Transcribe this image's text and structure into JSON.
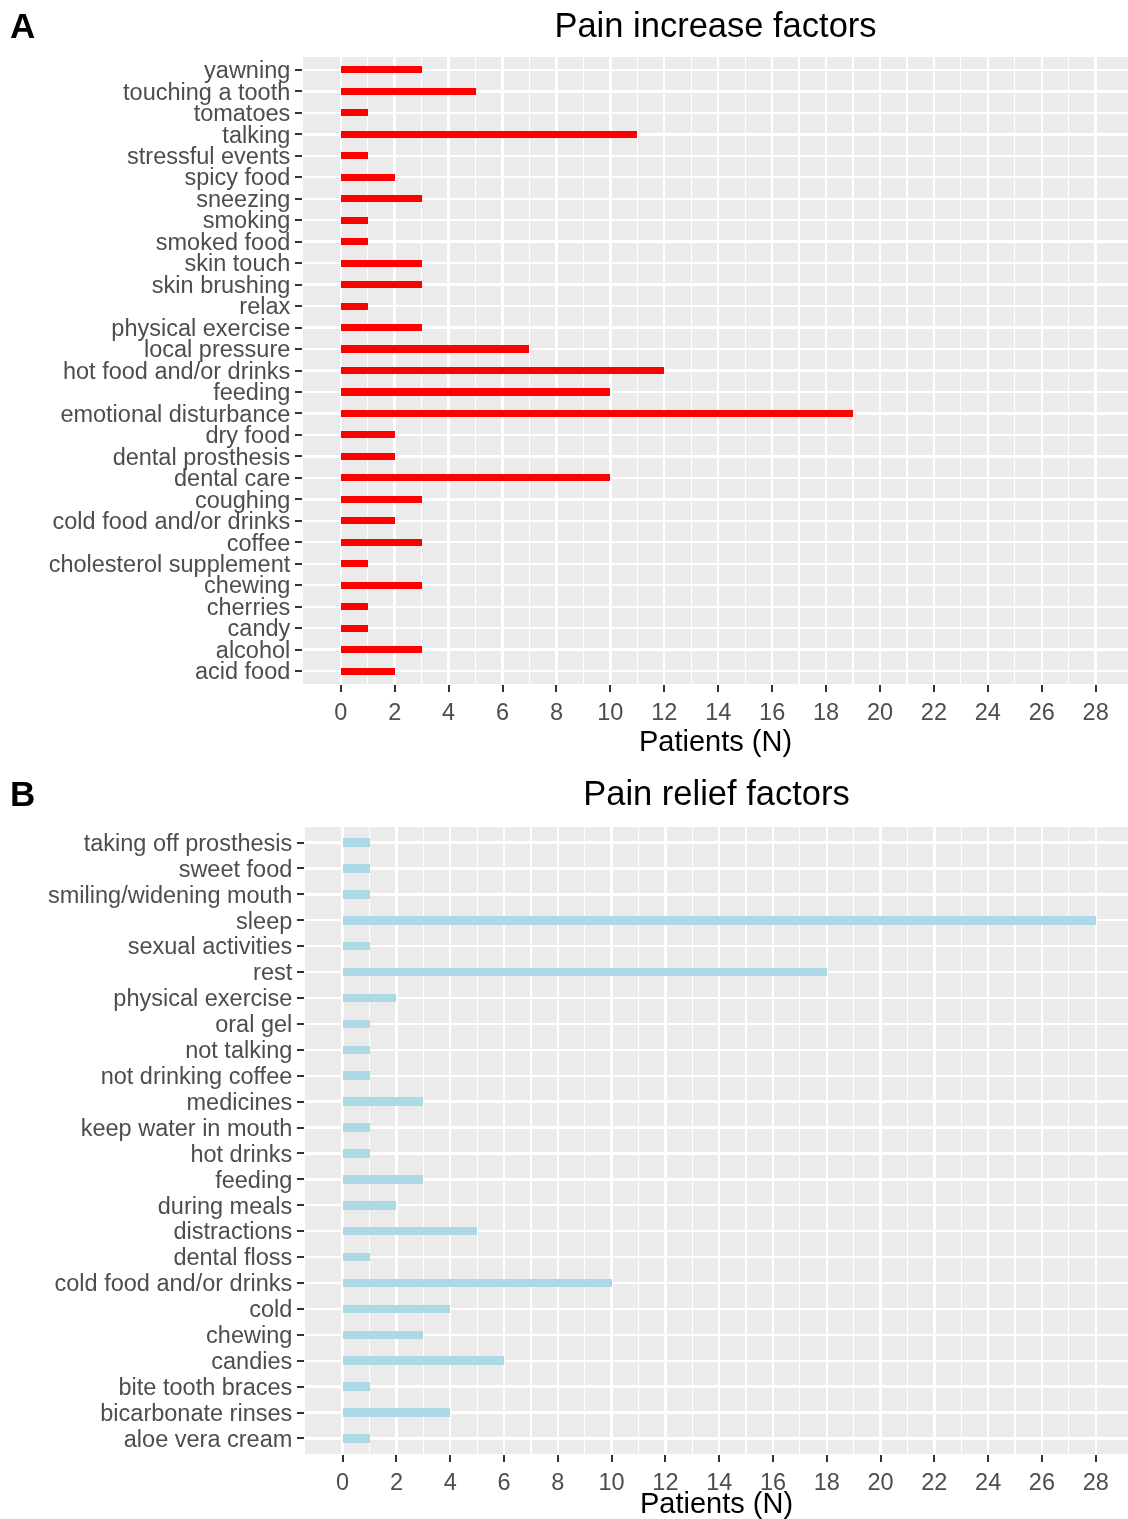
{
  "chart_data": [
    {
      "type": "bar",
      "orientation": "horizontal",
      "title": "Pain increase factors",
      "xlabel": "Patients (N)",
      "annotations": [
        "A"
      ],
      "categories": [
        "yawning",
        "touching a tooth",
        "tomatoes",
        "talking",
        "stressful events",
        "spicy food",
        "sneezing",
        "smoking",
        "smoked food",
        "skin touch",
        "skin brushing",
        "relax",
        "physical exercise",
        "local pressure",
        "hot food and/or drinks",
        "feeding",
        "emotional disturbance",
        "dry food",
        "dental prosthesis",
        "dental care",
        "coughing",
        "cold food and/or drinks",
        "coffee",
        "cholesterol supplement",
        "chewing",
        "cherries",
        "candy",
        "alcohol",
        "acid food"
      ],
      "values": [
        3,
        5,
        1,
        11,
        1,
        2,
        3,
        1,
        1,
        3,
        3,
        1,
        3,
        7,
        12,
        10,
        19,
        2,
        2,
        10,
        3,
        2,
        3,
        1,
        3,
        1,
        1,
        3,
        2
      ],
      "color": "#ff0000",
      "xlim": [
        -1.4,
        29.2
      ],
      "xticks": [
        0,
        2,
        4,
        6,
        8,
        10,
        12,
        14,
        16,
        18,
        20,
        22,
        24,
        26,
        28
      ],
      "grid": true
    },
    {
      "type": "bar",
      "orientation": "horizontal",
      "title": "Pain relief factors",
      "xlabel": "Patients (N)",
      "annotations": [
        "B"
      ],
      "categories": [
        "taking off prosthesis",
        "sweet food",
        "smiling/widening mouth",
        "sleep",
        "sexual activities",
        "rest",
        "physical exercise",
        "oral gel",
        "not talking",
        "not drinking coffee",
        "medicines",
        "keep water in mouth",
        "hot drinks",
        "feeding",
        "during meals",
        "distractions",
        "dental floss",
        "cold food and/or drinks",
        "cold",
        "chewing",
        "candies",
        "bite tooth braces",
        "bicarbonate rinses",
        "aloe vera cream"
      ],
      "values": [
        1,
        1,
        1,
        28,
        1,
        18,
        2,
        1,
        1,
        1,
        3,
        1,
        1,
        3,
        2,
        5,
        1,
        10,
        4,
        3,
        6,
        1,
        4,
        1
      ],
      "color": "#add8e6",
      "xlim": [
        -1.4,
        29.2
      ],
      "xticks": [
        0,
        2,
        4,
        6,
        8,
        10,
        12,
        14,
        16,
        18,
        20,
        22,
        24,
        26,
        28
      ],
      "grid": true
    }
  ]
}
